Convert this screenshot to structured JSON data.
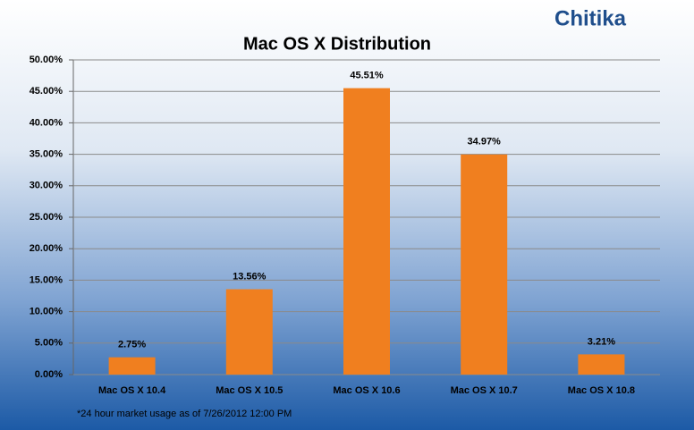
{
  "logo": "Chitika",
  "chart_data": {
    "type": "bar",
    "title": "Mac OS X Distribution",
    "categories": [
      "Mac OS X 10.4",
      "Mac OS X 10.5",
      "Mac OS X 10.6",
      "Mac OS X 10.7",
      "Mac OS X 10.8"
    ],
    "values": [
      2.75,
      13.56,
      45.51,
      34.97,
      3.21
    ],
    "value_labels": [
      "2.75%",
      "13.56%",
      "45.51%",
      "34.97%",
      "3.21%"
    ],
    "color": "#f07f1f",
    "ylim": [
      0,
      50
    ],
    "yticks": [
      {
        "value": 0,
        "label": "0.00%"
      },
      {
        "value": 5,
        "label": "5.00%"
      },
      {
        "value": 10,
        "label": "10.00%"
      },
      {
        "value": 15,
        "label": "15.00%"
      },
      {
        "value": 20,
        "label": "20.00%"
      },
      {
        "value": 25,
        "label": "25.00%"
      },
      {
        "value": 30,
        "label": "30.00%"
      },
      {
        "value": 35,
        "label": "35.00%"
      },
      {
        "value": 40,
        "label": "40.00%"
      },
      {
        "value": 45,
        "label": "45.00%"
      },
      {
        "value": 50,
        "label": "50.00%"
      }
    ],
    "grid": true,
    "footnote": "*24 hour market usage as of  7/26/2012 12:00 PM"
  }
}
